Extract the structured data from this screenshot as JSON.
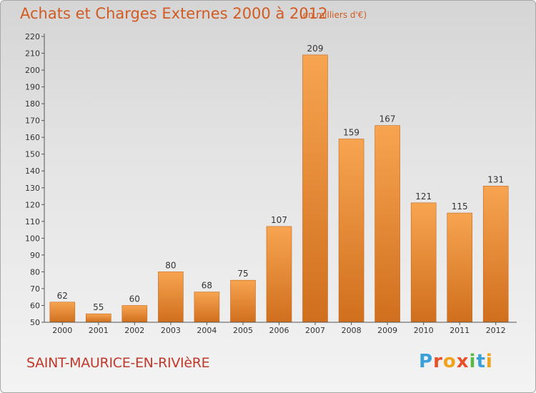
{
  "header": {
    "title": "Achats et Charges Externes 2000 à 2012",
    "unit": "(en milliers d'€)"
  },
  "footer": {
    "commune": "SAINT-MAURICE-EN-RIVIèRE",
    "logo": "Proxiti",
    "logo_colors": [
      "#3aa0d9",
      "#e8502a",
      "#f0a21b",
      "#e8502a",
      "#58b947",
      "#3aa0d9",
      "#f0a21b"
    ]
  },
  "colors": {
    "bar_top": "#f7a450",
    "bar_bottom": "#d06f1e",
    "axis": "#555555",
    "text": "#333333"
  },
  "chart_data": {
    "type": "bar",
    "categories": [
      "2000",
      "2001",
      "2002",
      "2003",
      "2004",
      "2005",
      "2006",
      "2007",
      "2008",
      "2009",
      "2010",
      "2011",
      "2012"
    ],
    "values": [
      62,
      55,
      60,
      80,
      68,
      75,
      107,
      209,
      159,
      167,
      121,
      115,
      131
    ],
    "title": "Achats et Charges Externes 2000 à 2012",
    "xlabel": "",
    "ylabel": "",
    "ylim": [
      50,
      220
    ],
    "yticks": [
      50,
      60,
      70,
      80,
      90,
      100,
      110,
      120,
      130,
      140,
      150,
      160,
      170,
      180,
      190,
      200,
      210,
      220
    ],
    "grid": false,
    "legend": "none"
  }
}
